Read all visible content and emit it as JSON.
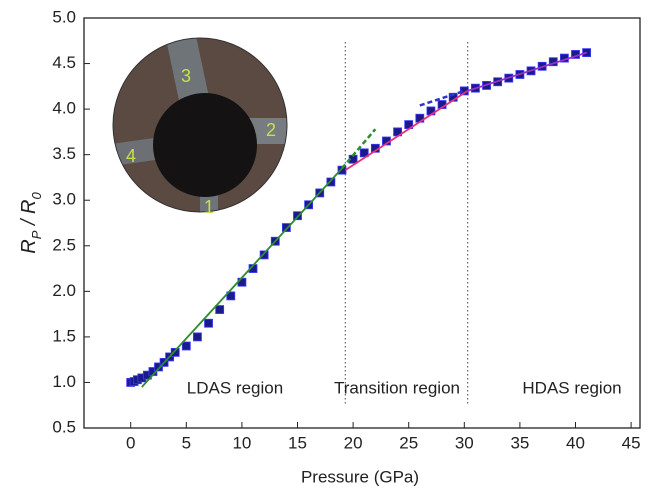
{
  "chart_data": {
    "type": "scatter",
    "xlabel": "Pressure (GPa)",
    "ylabel": [
      "R",
      "P",
      " / R",
      "0"
    ],
    "xlim": [
      -4.2,
      45.8
    ],
    "ylim": [
      0.5,
      5.0
    ],
    "xticks": [
      0,
      5,
      10,
      15,
      20,
      25,
      30,
      35,
      40,
      45
    ],
    "yticks": [
      {
        "value": 0.5,
        "label": "0.5"
      },
      {
        "value": 1,
        "label": "1.0"
      },
      {
        "value": 1.5,
        "label": "1.5"
      },
      {
        "value": 2,
        "label": "2.0"
      },
      {
        "value": 2.5,
        "label": "2.5"
      },
      {
        "value": 3,
        "label": "3.0"
      },
      {
        "value": 3.5,
        "label": "3.5"
      },
      {
        "value": 4,
        "label": "4.0"
      },
      {
        "value": 4.5,
        "label": "4.5"
      },
      {
        "value": 5,
        "label": "5.0"
      }
    ],
    "series": [
      {
        "color": "#1a1a8c",
        "x": [
          0,
          0.3,
          0.6,
          1,
          1.5,
          2,
          2.5,
          3,
          3.5,
          4,
          5,
          6,
          7,
          8,
          9,
          10,
          11,
          12,
          13,
          14,
          15,
          16,
          17,
          18,
          19,
          20,
          21,
          22,
          23,
          24,
          25,
          26,
          27,
          28,
          29,
          30,
          31,
          32,
          33,
          34,
          35,
          36,
          37,
          38,
          39,
          40,
          41
        ],
        "values": [
          1.0,
          1.01,
          1.03,
          1.05,
          1.08,
          1.12,
          1.17,
          1.22,
          1.28,
          1.33,
          1.4,
          1.5,
          1.65,
          1.8,
          1.95,
          2.1,
          2.25,
          2.4,
          2.55,
          2.7,
          2.83,
          2.95,
          3.08,
          3.2,
          3.33,
          3.45,
          3.52,
          3.57,
          3.65,
          3.75,
          3.83,
          3.9,
          3.98,
          4.05,
          4.13,
          4.2,
          4.23,
          4.26,
          4.3,
          4.34,
          4.38,
          4.42,
          4.47,
          4.52,
          4.56,
          4.6,
          4.62
        ]
      }
    ],
    "fits": [
      {
        "color": "#2e8b2e",
        "dashed": false,
        "x": [
          1,
          19
        ],
        "values": [
          0.95,
          3.35
        ]
      },
      {
        "color": "#2e8b2e",
        "dashed": true,
        "x": [
          19,
          22
        ],
        "values": [
          3.35,
          3.78
        ]
      },
      {
        "color": "#e8307a",
        "dashed": false,
        "x": [
          19.3,
          30.3
        ],
        "values": [
          3.33,
          4.2
        ]
      },
      {
        "color": "#3333cc",
        "dashed": true,
        "x": [
          26,
          30
        ],
        "values": [
          4.04,
          4.2
        ]
      },
      {
        "color": "#9a2fc8",
        "dashed": false,
        "x": [
          30.3,
          41
        ],
        "values": [
          4.2,
          4.62
        ]
      }
    ],
    "vlines": [
      19.3,
      30.3
    ],
    "annotations": [
      "LDAS region",
      "Transition region",
      "HDAS region"
    ],
    "inset_labels": [
      "3",
      "2",
      "4",
      "1"
    ]
  }
}
